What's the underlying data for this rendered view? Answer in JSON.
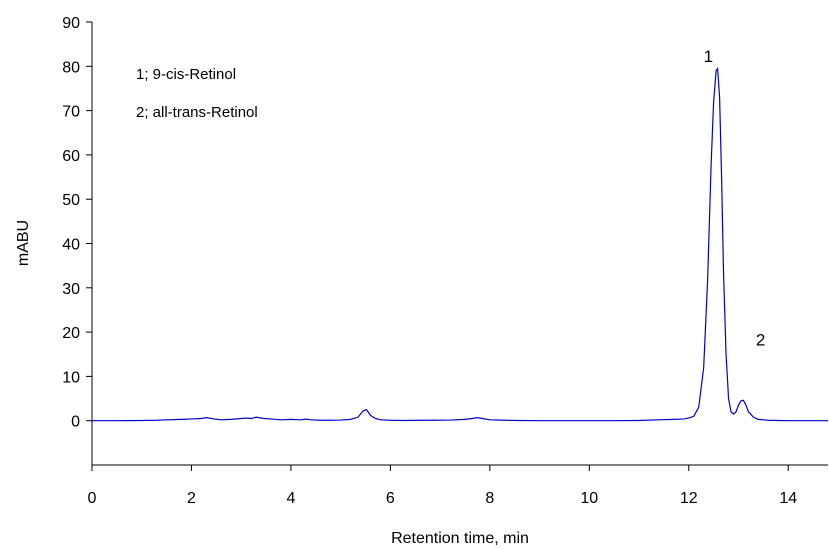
{
  "chart_data": {
    "type": "line",
    "title": "",
    "xlabel": "Retention time, min",
    "ylabel": "mABU",
    "xlim": [
      0,
      14.8
    ],
    "ylim": [
      -10,
      90
    ],
    "xticks": [
      0,
      2,
      4,
      6,
      8,
      10,
      12,
      14
    ],
    "yticks": [
      0,
      10,
      20,
      30,
      40,
      50,
      60,
      70,
      80,
      90
    ],
    "xtick_labels": [
      "0",
      "2",
      "4",
      "6",
      "8",
      "10",
      "12",
      "14"
    ],
    "ytick_labels": [
      "0",
      "10",
      "20",
      "30",
      "40",
      "50",
      "60",
      "70",
      "80",
      "90"
    ],
    "grid": false,
    "line_color": "#0000cc",
    "legend": [
      "1; 9-cis-Retinol",
      "2; all-trans-Retinol"
    ],
    "legend_position": "top-left",
    "annotations": [
      {
        "text": "1",
        "x": 12.3,
        "y": 81
      },
      {
        "text": "2",
        "x": 13.35,
        "y": 17
      }
    ],
    "series": [
      {
        "x": [
          0,
          0.5,
          1.0,
          1.3,
          1.5,
          1.8,
          2.0,
          2.2,
          2.3,
          2.45,
          2.6,
          2.8,
          3.0,
          3.1,
          3.2,
          3.3,
          3.45,
          3.6,
          3.8,
          4.0,
          4.2,
          4.3,
          4.4,
          4.6,
          4.8,
          5.0,
          5.2,
          5.35,
          5.45,
          5.52,
          5.6,
          5.7,
          5.8,
          6.0,
          6.3,
          6.6,
          6.9,
          7.2,
          7.5,
          7.65,
          7.75,
          7.85,
          8.0,
          8.3,
          8.6,
          9.0,
          9.5,
          10.0,
          10.5,
          11.0,
          11.4,
          11.7,
          11.9,
          12.0,
          12.1,
          12.2,
          12.3,
          12.38,
          12.45,
          12.5,
          12.55,
          12.58,
          12.62,
          12.66,
          12.7,
          12.75,
          12.8,
          12.85,
          12.9,
          12.95,
          13.0,
          13.05,
          13.1,
          13.15,
          13.2,
          13.3,
          13.4,
          13.6,
          13.8,
          14.0,
          14.3,
          14.8
        ],
        "y": [
          0,
          0,
          0.05,
          0.1,
          0.2,
          0.3,
          0.4,
          0.5,
          0.7,
          0.4,
          0.2,
          0.3,
          0.5,
          0.6,
          0.5,
          0.8,
          0.5,
          0.4,
          0.2,
          0.3,
          0.2,
          0.35,
          0.2,
          0.1,
          0.1,
          0.15,
          0.3,
          0.8,
          2.2,
          2.5,
          1.2,
          0.5,
          0.2,
          0.1,
          0.05,
          0.1,
          0.1,
          0.15,
          0.3,
          0.5,
          0.7,
          0.5,
          0.2,
          0.1,
          0.05,
          0,
          0,
          0,
          0,
          0.05,
          0.2,
          0.3,
          0.4,
          0.6,
          1.0,
          3,
          12,
          32,
          58,
          72,
          79,
          79.5,
          73,
          55,
          33,
          15,
          5,
          2,
          1.5,
          2,
          3.5,
          4.5,
          4.6,
          3.5,
          2,
          0.8,
          0.3,
          0.1,
          0.05,
          0,
          0,
          0
        ]
      }
    ]
  }
}
